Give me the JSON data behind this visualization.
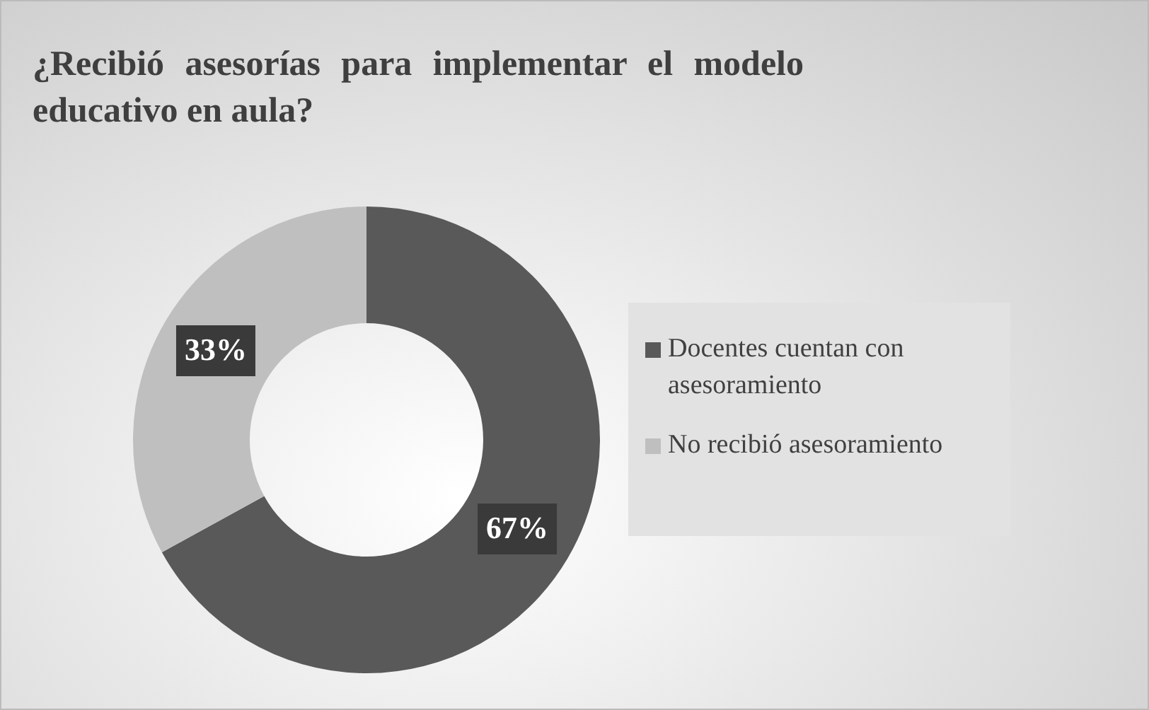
{
  "chart_data": {
    "type": "donut",
    "title": "¿Recibió asesorías para implementar el modelo educativo en aula?",
    "categories": [
      "Docentes cuentan con asesoramiento",
      "No recibió asesoramiento"
    ],
    "values": [
      67,
      33
    ],
    "colors": [
      "#595959",
      "#bfbfbf"
    ],
    "value_labels": [
      "67%",
      "33%"
    ],
    "legend": "right"
  }
}
